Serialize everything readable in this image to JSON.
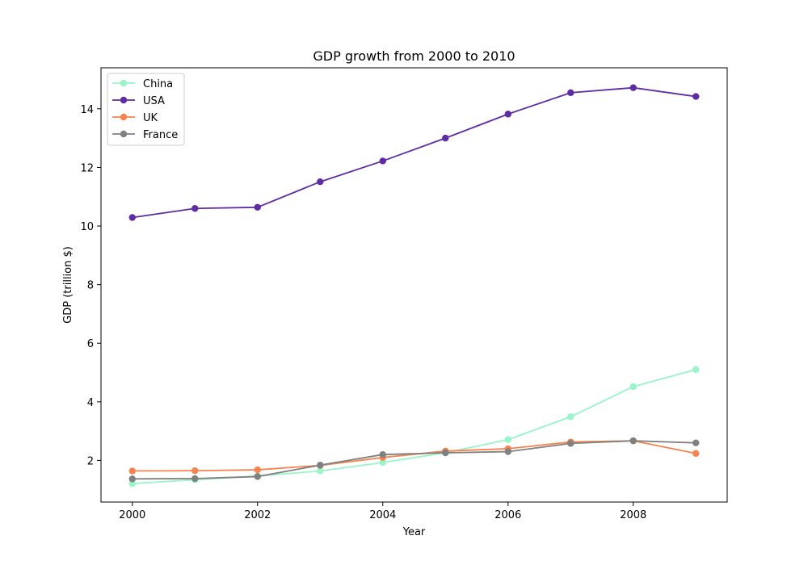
{
  "chart_data": {
    "type": "line",
    "title": "GDP growth from 2000 to 2010",
    "xlabel": "Year",
    "ylabel": "GDP (trillion $)",
    "x": [
      2000,
      2001,
      2002,
      2003,
      2004,
      2005,
      2006,
      2007,
      2008,
      2009
    ],
    "xlim": [
      1999.5,
      2009.5
    ],
    "ylim": [
      0.58,
      15.4
    ],
    "xticks": [
      2000,
      2002,
      2004,
      2006,
      2008
    ],
    "yticks": [
      2,
      4,
      6,
      8,
      10,
      12,
      14
    ],
    "grid": false,
    "legend_position": "top-left",
    "series": [
      {
        "name": "China",
        "color": "#98f5c8",
        "values": [
          1.21,
          1.34,
          1.47,
          1.64,
          1.93,
          2.26,
          2.71,
          3.49,
          4.52,
          5.1
        ]
      },
      {
        "name": "USA",
        "color": "#5e2ca5",
        "values": [
          10.29,
          10.6,
          10.64,
          11.51,
          12.22,
          13.0,
          13.82,
          14.55,
          14.72,
          14.42
        ]
      },
      {
        "name": "UK",
        "color": "#f7834f",
        "values": [
          1.64,
          1.65,
          1.68,
          1.83,
          2.1,
          2.32,
          2.4,
          2.63,
          2.67,
          2.24
        ]
      },
      {
        "name": "France",
        "color": "#808080",
        "values": [
          1.37,
          1.38,
          1.45,
          1.84,
          2.2,
          2.26,
          2.3,
          2.58,
          2.67,
          2.6
        ]
      }
    ]
  }
}
